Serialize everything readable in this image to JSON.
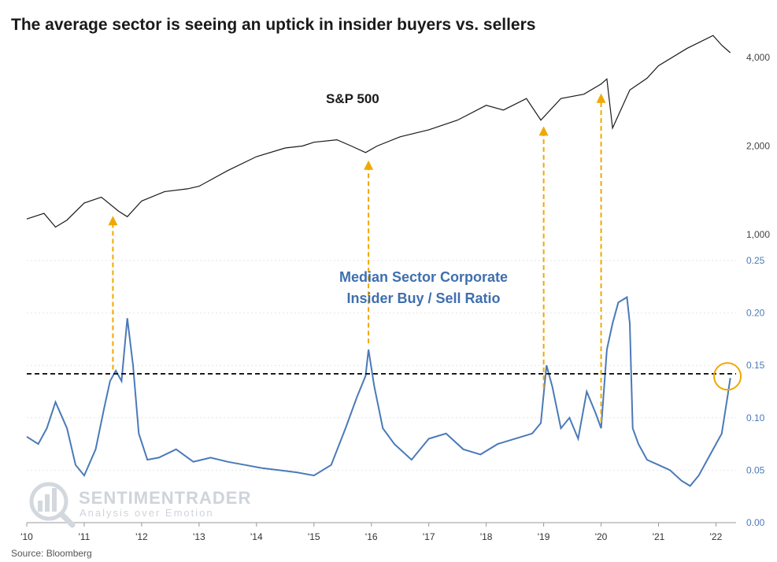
{
  "header": {
    "title": "The average sector is seeing an uptick in insider buyers vs. sellers"
  },
  "footer": {
    "source": "Source: Bloomberg"
  },
  "watermark": {
    "brand": "SENTIMENTRADER",
    "tagline": "Analysis over Emotion"
  },
  "colors": {
    "spx_line": "#1a1a1a",
    "ratio_line": "#4a7ab8",
    "arrow": "#f0a800",
    "threshold": "#000000",
    "highlight_circle": "#f0a800"
  },
  "chart_data": [
    {
      "type": "line",
      "name": "S&P 500",
      "label": "S&P 500",
      "yscale": "log",
      "yticks": [
        1000,
        2000,
        4000
      ],
      "ytick_labels": [
        "1,000",
        "2,000",
        "4,000"
      ],
      "x": [
        2010.0,
        2010.3,
        2010.5,
        2010.7,
        2011.0,
        2011.3,
        2011.6,
        2011.75,
        2012.0,
        2012.4,
        2012.8,
        2013.0,
        2013.5,
        2014.0,
        2014.5,
        2014.8,
        2015.0,
        2015.4,
        2015.65,
        2015.9,
        2016.1,
        2016.5,
        2017.0,
        2017.5,
        2018.0,
        2018.3,
        2018.7,
        2018.95,
        2019.3,
        2019.7,
        2020.0,
        2020.1,
        2020.2,
        2020.5,
        2020.8,
        2021.0,
        2021.5,
        2021.95,
        2022.1,
        2022.25
      ],
      "values": [
        1130,
        1180,
        1060,
        1120,
        1280,
        1340,
        1200,
        1150,
        1300,
        1400,
        1430,
        1460,
        1650,
        1840,
        1970,
        2000,
        2060,
        2100,
        2000,
        1900,
        2000,
        2150,
        2270,
        2450,
        2750,
        2650,
        2900,
        2450,
        2900,
        3000,
        3250,
        3380,
        2300,
        3100,
        3400,
        3750,
        4300,
        4750,
        4400,
        4150
      ]
    },
    {
      "type": "line",
      "name": "Median Sector Corporate Insider Buy / Sell Ratio",
      "label": [
        "Median Sector Corporate",
        "Insider Buy / Sell Ratio"
      ],
      "ylim": [
        0,
        0.25
      ],
      "yticks": [
        0.0,
        0.05,
        0.1,
        0.15,
        0.2,
        0.25
      ],
      "ytick_labels": [
        "0.00",
        "0.05",
        "0.10",
        "0.15",
        "0.20",
        "0.25"
      ],
      "x": [
        2010.0,
        2010.2,
        2010.35,
        2010.5,
        2010.7,
        2010.85,
        2011.0,
        2011.2,
        2011.35,
        2011.45,
        2011.55,
        2011.65,
        2011.75,
        2011.85,
        2011.95,
        2012.1,
        2012.3,
        2012.6,
        2012.9,
        2013.2,
        2013.5,
        2013.8,
        2014.1,
        2014.4,
        2014.7,
        2015.0,
        2015.3,
        2015.55,
        2015.75,
        2015.9,
        2015.95,
        2016.05,
        2016.2,
        2016.4,
        2016.7,
        2017.0,
        2017.3,
        2017.6,
        2017.9,
        2018.2,
        2018.5,
        2018.8,
        2018.95,
        2019.05,
        2019.15,
        2019.3,
        2019.45,
        2019.6,
        2019.75,
        2019.9,
        2020.0,
        2020.1,
        2020.2,
        2020.3,
        2020.45,
        2020.5,
        2020.55,
        2020.65,
        2020.8,
        2021.0,
        2021.2,
        2021.4,
        2021.55,
        2021.7,
        2021.85,
        2022.0,
        2022.1,
        2022.2,
        2022.25
      ],
      "values": [
        0.082,
        0.075,
        0.09,
        0.115,
        0.09,
        0.055,
        0.045,
        0.07,
        0.11,
        0.135,
        0.145,
        0.135,
        0.195,
        0.15,
        0.085,
        0.06,
        0.062,
        0.07,
        0.058,
        0.062,
        0.058,
        0.055,
        0.052,
        0.05,
        0.048,
        0.045,
        0.055,
        0.09,
        0.12,
        0.14,
        0.165,
        0.13,
        0.09,
        0.075,
        0.06,
        0.08,
        0.085,
        0.07,
        0.065,
        0.075,
        0.08,
        0.085,
        0.095,
        0.15,
        0.13,
        0.09,
        0.1,
        0.08,
        0.125,
        0.105,
        0.09,
        0.165,
        0.19,
        0.21,
        0.215,
        0.19,
        0.09,
        0.075,
        0.06,
        0.055,
        0.05,
        0.04,
        0.035,
        0.045,
        0.06,
        0.075,
        0.085,
        0.12,
        0.138
      ]
    }
  ],
  "threshold": {
    "value": 0.142
  },
  "arrows": [
    {
      "from_ratio_year": 2011.5,
      "to_spx_year": 2011.5
    },
    {
      "from_ratio_year": 2015.95,
      "to_spx_year": 2015.95
    },
    {
      "from_ratio_year": 2019.0,
      "to_spx_year": 2019.0
    },
    {
      "from_ratio_year": 2020.0,
      "to_spx_year": 2020.0
    }
  ],
  "highlight": {
    "year": 2022.2,
    "value": 0.138
  },
  "x_axis": {
    "min": 2010,
    "max": 2022.35,
    "ticks": [
      2010,
      2011,
      2012,
      2013,
      2014,
      2015,
      2016,
      2017,
      2018,
      2019,
      2020,
      2021,
      2022
    ],
    "tick_labels": [
      "'10",
      "'11",
      "'12",
      "'13",
      "'14",
      "'15",
      "'16",
      "'17",
      "'18",
      "'19",
      "'20",
      "'21",
      "'22"
    ]
  }
}
